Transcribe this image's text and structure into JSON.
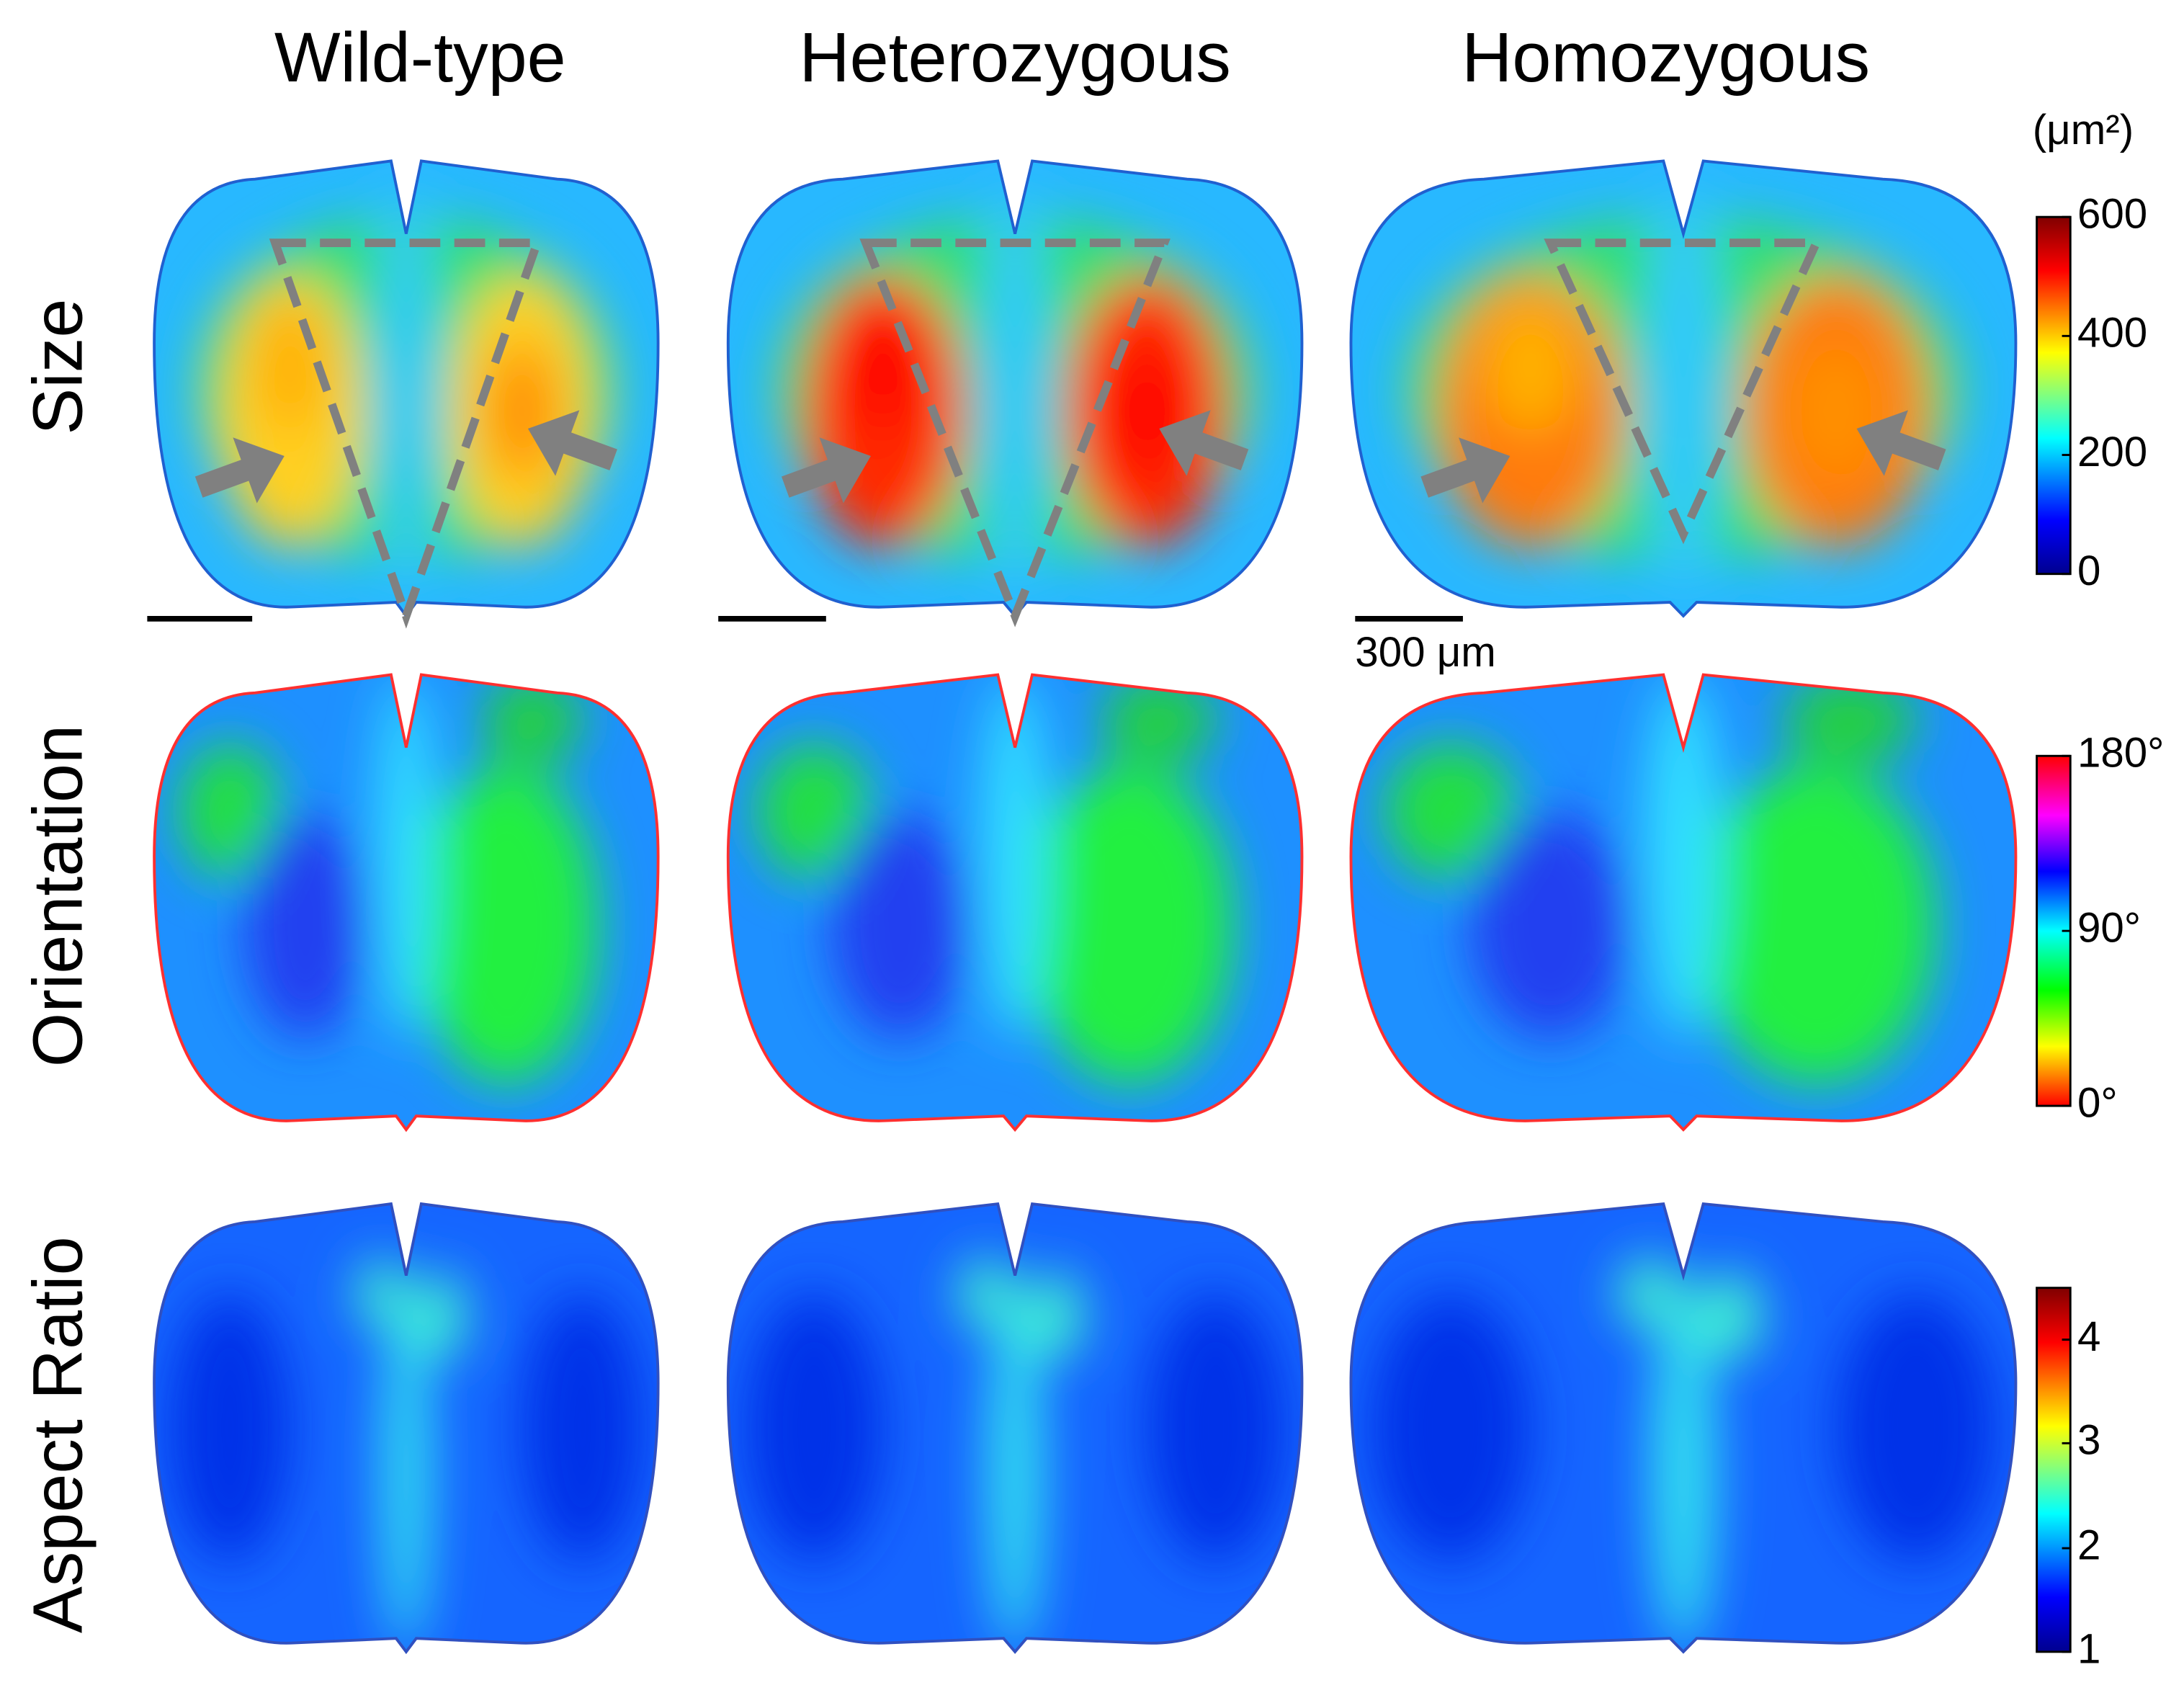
{
  "columns": [
    "Wild-type",
    "Heterozygous",
    "Homozygous"
  ],
  "rows": [
    "Size",
    "Orientation",
    "Aspect Ratio"
  ],
  "colorbars": [
    {
      "unit": "(μm²)",
      "ticks": [
        "600",
        "400",
        "200",
        "0"
      ]
    },
    {
      "ticks": [
        "180°",
        "90°",
        "0°"
      ]
    },
    {
      "ticks": [
        "4",
        "3",
        "2",
        "1"
      ]
    }
  ],
  "scale_bar": "300 μm"
}
